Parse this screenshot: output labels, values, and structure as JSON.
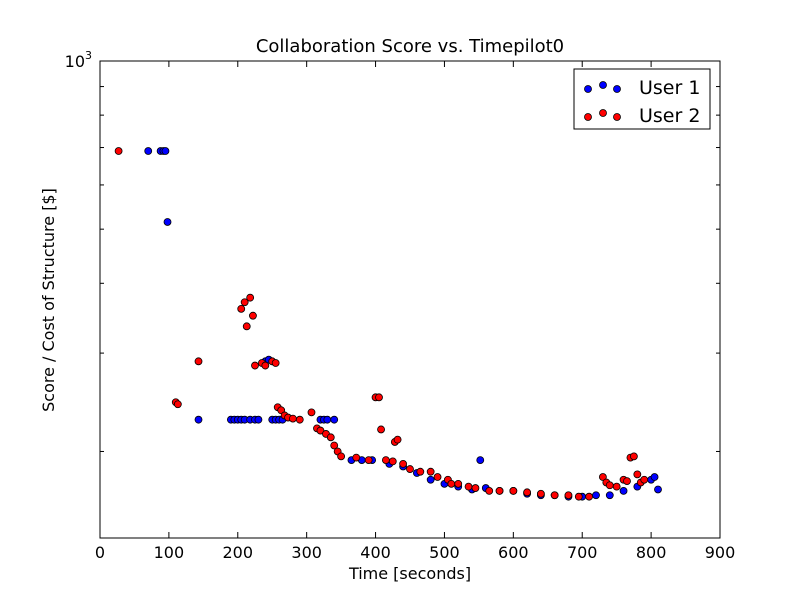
{
  "chart_data": {
    "type": "scatter",
    "title": "Collaboration Score vs. Timepilot0",
    "xlabel": "Time [seconds]",
    "ylabel": "Score / Cost of Structure [$]",
    "xlim": [
      0,
      900
    ],
    "ylim": [
      140,
      1000
    ],
    "yscale": "log",
    "x_ticks": [
      "0",
      "100",
      "200",
      "300",
      "400",
      "500",
      "600",
      "700",
      "800",
      "900"
    ],
    "y_ticks": [
      "10^3"
    ],
    "grid": false,
    "legend_position": "top-right",
    "series": [
      {
        "name": "User 1",
        "color": "#0000ff",
        "points": [
          [
            70,
            690
          ],
          [
            88,
            690
          ],
          [
            92,
            690
          ],
          [
            95,
            690
          ],
          [
            98,
            515
          ],
          [
            143,
            228
          ],
          [
            190,
            228
          ],
          [
            195,
            228
          ],
          [
            200,
            228
          ],
          [
            205,
            228
          ],
          [
            210,
            228
          ],
          [
            218,
            228
          ],
          [
            225,
            228
          ],
          [
            230,
            228
          ],
          [
            240,
            290
          ],
          [
            245,
            292
          ],
          [
            250,
            228
          ],
          [
            255,
            228
          ],
          [
            260,
            228
          ],
          [
            265,
            228
          ],
          [
            320,
            228
          ],
          [
            325,
            228
          ],
          [
            330,
            228
          ],
          [
            340,
            228
          ],
          [
            365,
            193
          ],
          [
            380,
            193
          ],
          [
            395,
            193
          ],
          [
            420,
            190
          ],
          [
            440,
            188
          ],
          [
            460,
            183
          ],
          [
            480,
            178
          ],
          [
            500,
            175
          ],
          [
            520,
            173
          ],
          [
            540,
            171
          ],
          [
            552,
            193
          ],
          [
            560,
            172
          ],
          [
            580,
            170
          ],
          [
            600,
            170
          ],
          [
            620,
            168
          ],
          [
            640,
            167
          ],
          [
            660,
            167
          ],
          [
            680,
            166
          ],
          [
            700,
            166
          ],
          [
            720,
            167
          ],
          [
            740,
            167
          ],
          [
            760,
            170
          ],
          [
            780,
            173
          ],
          [
            800,
            178
          ],
          [
            805,
            180
          ],
          [
            810,
            171
          ]
        ]
      },
      {
        "name": "User 2",
        "color": "#ff0000",
        "points": [
          [
            27,
            690
          ],
          [
            110,
            245
          ],
          [
            113,
            243
          ],
          [
            143,
            290
          ],
          [
            205,
            360
          ],
          [
            210,
            370
          ],
          [
            213,
            335
          ],
          [
            218,
            377
          ],
          [
            222,
            350
          ],
          [
            225,
            285
          ],
          [
            235,
            288
          ],
          [
            240,
            285
          ],
          [
            250,
            290
          ],
          [
            255,
            288
          ],
          [
            258,
            240
          ],
          [
            263,
            237
          ],
          [
            268,
            232
          ],
          [
            273,
            230
          ],
          [
            280,
            229
          ],
          [
            290,
            228
          ],
          [
            307,
            235
          ],
          [
            315,
            220
          ],
          [
            320,
            218
          ],
          [
            328,
            215
          ],
          [
            335,
            212
          ],
          [
            340,
            205
          ],
          [
            345,
            200
          ],
          [
            350,
            196
          ],
          [
            372,
            195
          ],
          [
            390,
            193
          ],
          [
            400,
            250
          ],
          [
            405,
            250
          ],
          [
            408,
            219
          ],
          [
            415,
            193
          ],
          [
            425,
            192
          ],
          [
            428,
            208
          ],
          [
            432,
            210
          ],
          [
            440,
            190
          ],
          [
            450,
            186
          ],
          [
            465,
            184
          ],
          [
            480,
            184
          ],
          [
            490,
            180
          ],
          [
            505,
            178
          ],
          [
            510,
            175
          ],
          [
            520,
            175
          ],
          [
            535,
            173
          ],
          [
            545,
            172
          ],
          [
            565,
            170
          ],
          [
            580,
            170
          ],
          [
            600,
            170
          ],
          [
            620,
            169
          ],
          [
            640,
            168
          ],
          [
            660,
            167
          ],
          [
            680,
            167
          ],
          [
            695,
            166
          ],
          [
            710,
            166
          ],
          [
            730,
            180
          ],
          [
            735,
            176
          ],
          [
            740,
            174
          ],
          [
            750,
            173
          ],
          [
            760,
            178
          ],
          [
            765,
            177
          ],
          [
            770,
            195
          ],
          [
            775,
            196
          ],
          [
            780,
            182
          ],
          [
            785,
            176
          ],
          [
            790,
            178
          ]
        ]
      }
    ]
  }
}
